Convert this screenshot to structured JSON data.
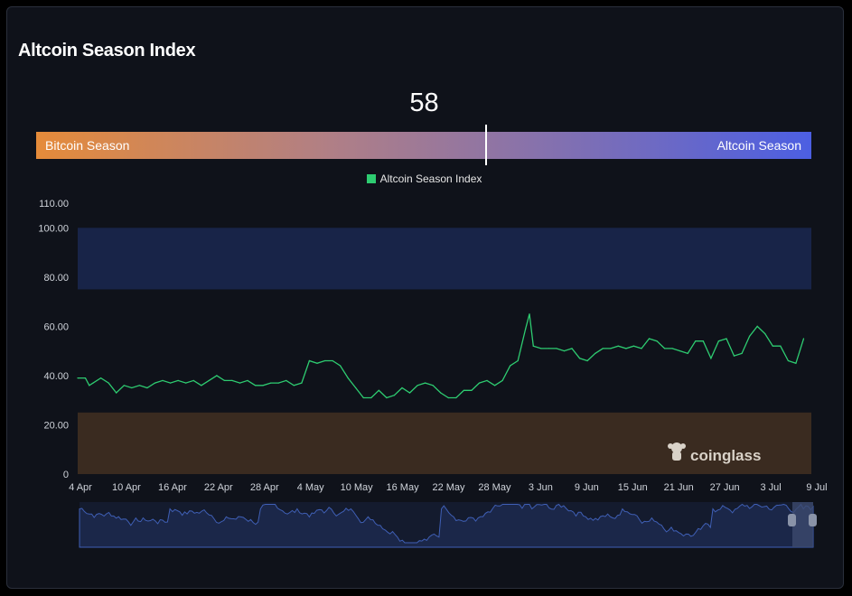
{
  "title": "Altcoin Season Index",
  "gauge": {
    "value": "58",
    "value_num": 58,
    "left_label": "Bitcoin Season",
    "right_label": "Altcoin Season"
  },
  "legend": {
    "label": "Altcoin Season Index"
  },
  "watermark": "coinglass",
  "colors": {
    "line": "#2ecc71",
    "altcoin_zone": "#182448",
    "bitcoin_zone": "#3a2b20",
    "navigator_line": "#3f5fb5",
    "background": "#0f121a"
  },
  "chart_data": {
    "type": "line",
    "series": [
      {
        "name": "Altcoin Season Index",
        "x_labels": [
          "4 Apr",
          "10 Apr",
          "16 Apr",
          "22 Apr",
          "28 Apr",
          "4 May",
          "10 May",
          "16 May",
          "22 May",
          "28 May",
          "3 Jun",
          "9 Jun",
          "15 Jun",
          "21 Jun",
          "27 Jun",
          "3 Jul",
          "9 Jul"
        ],
        "points": [
          [
            0,
            39
          ],
          [
            1,
            39
          ],
          [
            1.5,
            36
          ],
          [
            2,
            37
          ],
          [
            3,
            39
          ],
          [
            4,
            37
          ],
          [
            5,
            33
          ],
          [
            6,
            36
          ],
          [
            7,
            35
          ],
          [
            8,
            36
          ],
          [
            9,
            35
          ],
          [
            10,
            37
          ],
          [
            11,
            38
          ],
          [
            12,
            37
          ],
          [
            13,
            38
          ],
          [
            14,
            37
          ],
          [
            15,
            38
          ],
          [
            16,
            36
          ],
          [
            17,
            38
          ],
          [
            18,
            40
          ],
          [
            19,
            38
          ],
          [
            20,
            38
          ],
          [
            21,
            37
          ],
          [
            22,
            38
          ],
          [
            23,
            36
          ],
          [
            24,
            36
          ],
          [
            25,
            37
          ],
          [
            26,
            37
          ],
          [
            27,
            38
          ],
          [
            28,
            36
          ],
          [
            29,
            37
          ],
          [
            30,
            46
          ],
          [
            31,
            45
          ],
          [
            32,
            46
          ],
          [
            33,
            46
          ],
          [
            34,
            44
          ],
          [
            35,
            39
          ],
          [
            36,
            35
          ],
          [
            37,
            31
          ],
          [
            38,
            31
          ],
          [
            39,
            34
          ],
          [
            40,
            31
          ],
          [
            41,
            32
          ],
          [
            42,
            35
          ],
          [
            43,
            33
          ],
          [
            44,
            36
          ],
          [
            45,
            37
          ],
          [
            46,
            36
          ],
          [
            47,
            33
          ],
          [
            48,
            31
          ],
          [
            49,
            31
          ],
          [
            50,
            34
          ],
          [
            51,
            34
          ],
          [
            52,
            37
          ],
          [
            53,
            38
          ],
          [
            54,
            36
          ],
          [
            55,
            38
          ],
          [
            56,
            44
          ],
          [
            57,
            46
          ],
          [
            58,
            59
          ],
          [
            58.5,
            65
          ],
          [
            59,
            52
          ],
          [
            60,
            51
          ],
          [
            61,
            51
          ],
          [
            62,
            51
          ],
          [
            63,
            50
          ],
          [
            64,
            51
          ],
          [
            65,
            47
          ],
          [
            66,
            46
          ],
          [
            67,
            49
          ],
          [
            68,
            51
          ],
          [
            69,
            51
          ],
          [
            70,
            52
          ],
          [
            71,
            51
          ],
          [
            72,
            52
          ],
          [
            73,
            51
          ],
          [
            74,
            55
          ],
          [
            75,
            54
          ],
          [
            76,
            51
          ],
          [
            77,
            51
          ],
          [
            78,
            50
          ],
          [
            79,
            49
          ],
          [
            80,
            54
          ],
          [
            81,
            54
          ],
          [
            82,
            47
          ],
          [
            83,
            54
          ],
          [
            84,
            55
          ],
          [
            85,
            48
          ],
          [
            86,
            49
          ],
          [
            87,
            56
          ],
          [
            88,
            60
          ],
          [
            89,
            57
          ],
          [
            90,
            52
          ],
          [
            91,
            52
          ],
          [
            92,
            46
          ],
          [
            93,
            45
          ],
          [
            94,
            55
          ]
        ]
      }
    ],
    "x_range": [
      0,
      95
    ],
    "y_ticks": [
      "0",
      "20.00",
      "40.00",
      "60.00",
      "80.00",
      "100.00",
      "110.00"
    ],
    "ylim": [
      0,
      110
    ],
    "bands": [
      {
        "name": "altcoin",
        "from": 75,
        "to": 100
      },
      {
        "name": "bitcoin",
        "from": 0,
        "to": 25
      }
    ],
    "legend_position": "top-center",
    "grid": false
  }
}
